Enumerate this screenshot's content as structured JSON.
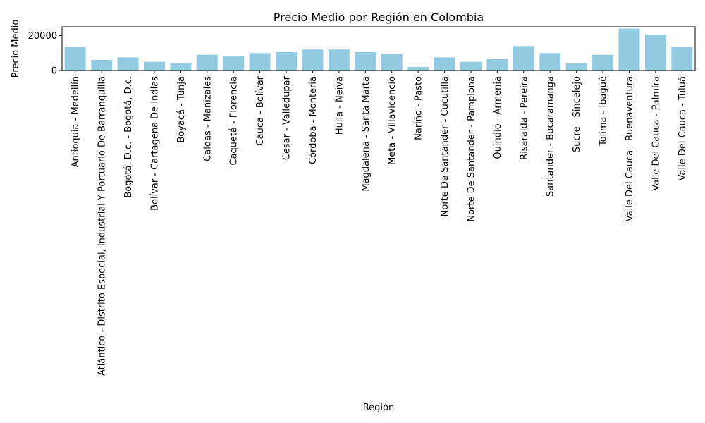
{
  "chart_data": {
    "type": "bar",
    "title": "Precio Medio por Región en Colombia",
    "xlabel": "Región",
    "ylabel": "Precio Medio",
    "ylim": [
      0,
      25000
    ],
    "yticks": [
      0,
      20000
    ],
    "grid": false,
    "bar_color": "#92cbe1",
    "categories": [
      "Antioquia - Medellín",
      "Atlántico - Distrito Especial, Industrial Y Portuario De Barranquilla",
      "Bogotá, D.c. - Bogotá, D.c.",
      "Bolívar - Cartagena De Indias",
      "Boyacá - Tunja",
      "Caldas - Manizales",
      "Caquetá - Florencia",
      "Cauca - Bolívar",
      "Cesar - Valledupar",
      "Córdoba - Montería",
      "Huila - Neiva",
      "Magdalena - Santa Marta",
      "Meta - Villavicencio",
      "Nariño - Pasto",
      "Norte De Santander - Cucutilla",
      "Norte De Santander - Pamplona",
      "Quindío - Armenia",
      "Risaralda - Pereira",
      "Santander - Bucaramanga",
      "Sucre - Sincelejo",
      "Tolima - Ibagué",
      "Valle Del Cauca - Buenaventura",
      "Valle Del Cauca - Palmira",
      "Valle Del Cauca - Tuluá"
    ],
    "values": [
      13500,
      6000,
      7500,
      5000,
      4000,
      9000,
      8000,
      10000,
      10500,
      12000,
      12000,
      10500,
      9500,
      2000,
      7500,
      5000,
      6500,
      14000,
      10000,
      4000,
      9000,
      24000,
      20500,
      13500
    ]
  }
}
